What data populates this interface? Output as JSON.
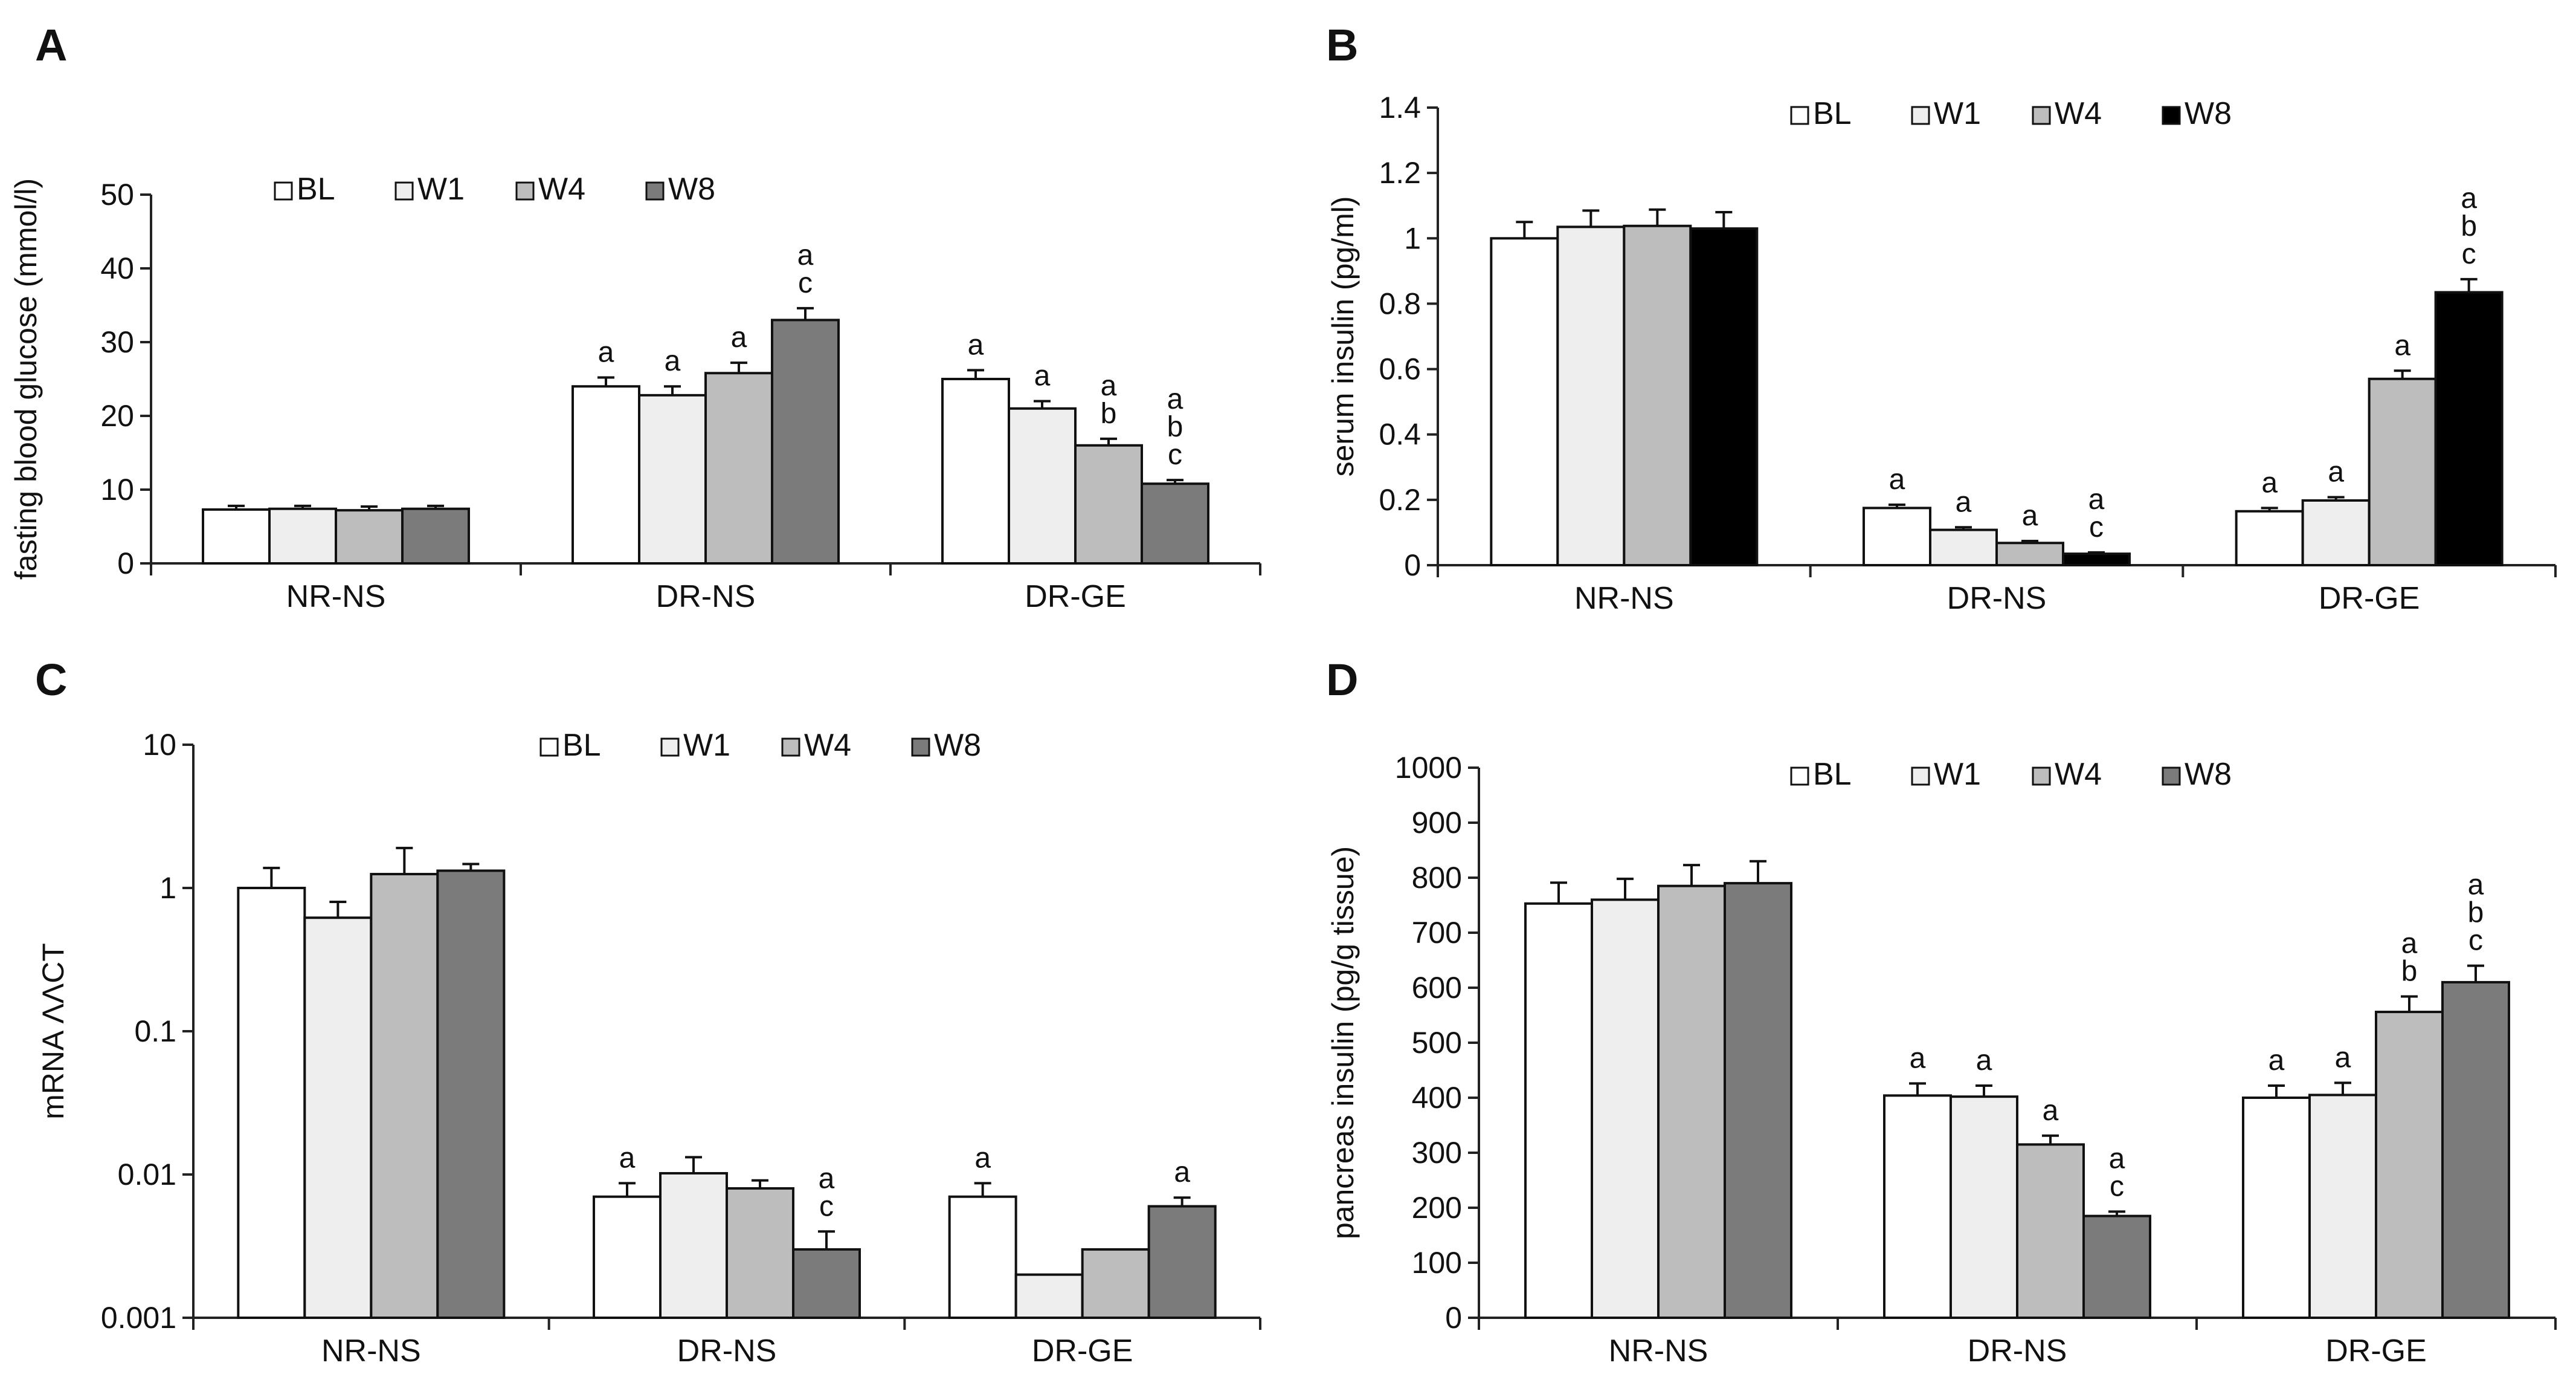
{
  "figure": {
    "panel_letters": [
      "A",
      "B",
      "C",
      "D"
    ]
  },
  "series_names": [
    "BL",
    "W1",
    "W4",
    "W8"
  ],
  "categories": [
    "NR-NS",
    "DR-NS",
    "DR-GE"
  ],
  "chart_data": [
    {
      "panel": "A",
      "type": "bar",
      "ylabel": "fasting blood glucose (mmol/l)",
      "ylim": [
        0,
        50
      ],
      "yticks": [
        0,
        10,
        20,
        30,
        40,
        50
      ],
      "ytick_labels": [
        "0",
        "10",
        "20",
        "30",
        "40",
        "50"
      ],
      "scale": "linear",
      "categories": [
        "NR-NS",
        "DR-NS",
        "DR-GE"
      ],
      "legend_position": "top-left",
      "series": [
        {
          "name": "BL",
          "color": "#ffffff",
          "values": [
            7.3,
            24,
            25
          ],
          "errors": [
            0.5,
            1.2,
            1.2
          ],
          "labels": [
            "",
            "a",
            "a"
          ]
        },
        {
          "name": "W1",
          "color": "#eeeeee",
          "values": [
            7.4,
            22.8,
            21
          ],
          "errors": [
            0.4,
            1.2,
            1.0
          ],
          "labels": [
            "",
            "a",
            "a"
          ]
        },
        {
          "name": "W4",
          "color": "#bdbdbd",
          "values": [
            7.2,
            25.8,
            16
          ],
          "errors": [
            0.5,
            1.4,
            0.9
          ],
          "labels": [
            "",
            "a",
            "a\nb"
          ]
        },
        {
          "name": "W8",
          "color": "#7b7b7b",
          "values": [
            7.4,
            33,
            10.8
          ],
          "errors": [
            0.4,
            1.6,
            0.5
          ],
          "labels": [
            "",
            "a\nc",
            "a\nb\nc"
          ]
        }
      ]
    },
    {
      "panel": "B",
      "type": "bar",
      "ylabel": "serum insulin (pg/ml)",
      "ylim": [
        0,
        1.4
      ],
      "yticks": [
        0,
        0.2,
        0.4,
        0.6,
        0.8,
        1.0,
        1.2,
        1.4
      ],
      "ytick_labels": [
        "0",
        "0.2",
        "0.4",
        "0.6",
        "0.8",
        "1",
        "1.2",
        "1.4"
      ],
      "scale": "linear",
      "categories": [
        "NR-NS",
        "DR-NS",
        "DR-GE"
      ],
      "legend_position": "top-center",
      "series": [
        {
          "name": "BL",
          "color": "#ffffff",
          "values": [
            1.0,
            0.175,
            0.165
          ],
          "errors": [
            0.05,
            0.01,
            0.01
          ],
          "labels": [
            "",
            "a",
            "a"
          ]
        },
        {
          "name": "W1",
          "color": "#eeeeee",
          "values": [
            1.035,
            0.108,
            0.198
          ],
          "errors": [
            0.05,
            0.008,
            0.01
          ],
          "labels": [
            "",
            "a",
            "a"
          ]
        },
        {
          "name": "W4",
          "color": "#bdbdbd",
          "values": [
            1.038,
            0.068,
            0.57
          ],
          "errors": [
            0.05,
            0.006,
            0.025
          ],
          "labels": [
            "",
            "a",
            "a"
          ]
        },
        {
          "name": "W8",
          "color": "#000000",
          "values": [
            1.03,
            0.035,
            0.835
          ],
          "errors": [
            0.05,
            0.004,
            0.04
          ],
          "labels": [
            "",
            "a\nc",
            "a\nb\nc"
          ]
        }
      ]
    },
    {
      "panel": "C",
      "type": "bar",
      "ylabel": "mRNA ΛΛCT",
      "ylim": [
        0.001,
        10
      ],
      "yticks": [
        0.001,
        0.01,
        0.1,
        1,
        10
      ],
      "ytick_labels": [
        "0.001",
        "0.01",
        "0.1",
        "1",
        "10"
      ],
      "scale": "log",
      "categories": [
        "NR-NS",
        "DR-NS",
        "DR-GE"
      ],
      "legend_position": "top-center",
      "series": [
        {
          "name": "BL",
          "color": "#ffffff",
          "values": [
            1.0,
            0.007,
            0.007
          ],
          "errors": [
            0.38,
            0.0017,
            0.0017
          ],
          "labels": [
            "",
            "a",
            "a"
          ]
        },
        {
          "name": "W1",
          "color": "#eeeeee",
          "values": [
            0.62,
            0.0102,
            0.002
          ],
          "errors": [
            0.18,
            0.003,
            0
          ],
          "labels": [
            "",
            "",
            ""
          ]
        },
        {
          "name": "W4",
          "color": "#bdbdbd",
          "values": [
            1.25,
            0.008,
            0.003
          ],
          "errors": [
            0.65,
            0.0011,
            0
          ],
          "labels": [
            "",
            "",
            ""
          ]
        },
        {
          "name": "W8",
          "color": "#7b7b7b",
          "values": [
            1.32,
            0.003,
            0.006
          ],
          "errors": [
            0.15,
            0.001,
            0.0009
          ],
          "labels": [
            "",
            "a\nc",
            "a"
          ]
        }
      ]
    },
    {
      "panel": "D",
      "type": "bar",
      "ylabel": "pancreas insulin (pg/g tissue)",
      "ylim": [
        0,
        1000
      ],
      "yticks": [
        0,
        100,
        200,
        300,
        400,
        500,
        600,
        700,
        800,
        900,
        1000
      ],
      "ytick_labels": [
        "0",
        "100",
        "200",
        "300",
        "400",
        "500",
        "600",
        "700",
        "800",
        "900",
        "1000"
      ],
      "scale": "linear",
      "categories": [
        "NR-NS",
        "DR-NS",
        "DR-GE"
      ],
      "legend_position": "top-center",
      "series": [
        {
          "name": "BL",
          "color": "#ffffff",
          "values": [
            753,
            404,
            400
          ],
          "errors": [
            38,
            22,
            22
          ],
          "labels": [
            "",
            "a",
            "a"
          ]
        },
        {
          "name": "W1",
          "color": "#eeeeee",
          "values": [
            760,
            402,
            405
          ],
          "errors": [
            38,
            20,
            22
          ],
          "labels": [
            "",
            "a",
            "a"
          ]
        },
        {
          "name": "W4",
          "color": "#bdbdbd",
          "values": [
            785,
            315,
            556
          ],
          "errors": [
            38,
            16,
            28
          ],
          "labels": [
            "",
            "a",
            "a\nb"
          ]
        },
        {
          "name": "W8",
          "color": "#7b7b7b",
          "values": [
            790,
            185,
            610
          ],
          "errors": [
            40,
            8,
            30
          ],
          "labels": [
            "",
            "a\nc",
            "a\nb\nc"
          ]
        }
      ]
    }
  ]
}
